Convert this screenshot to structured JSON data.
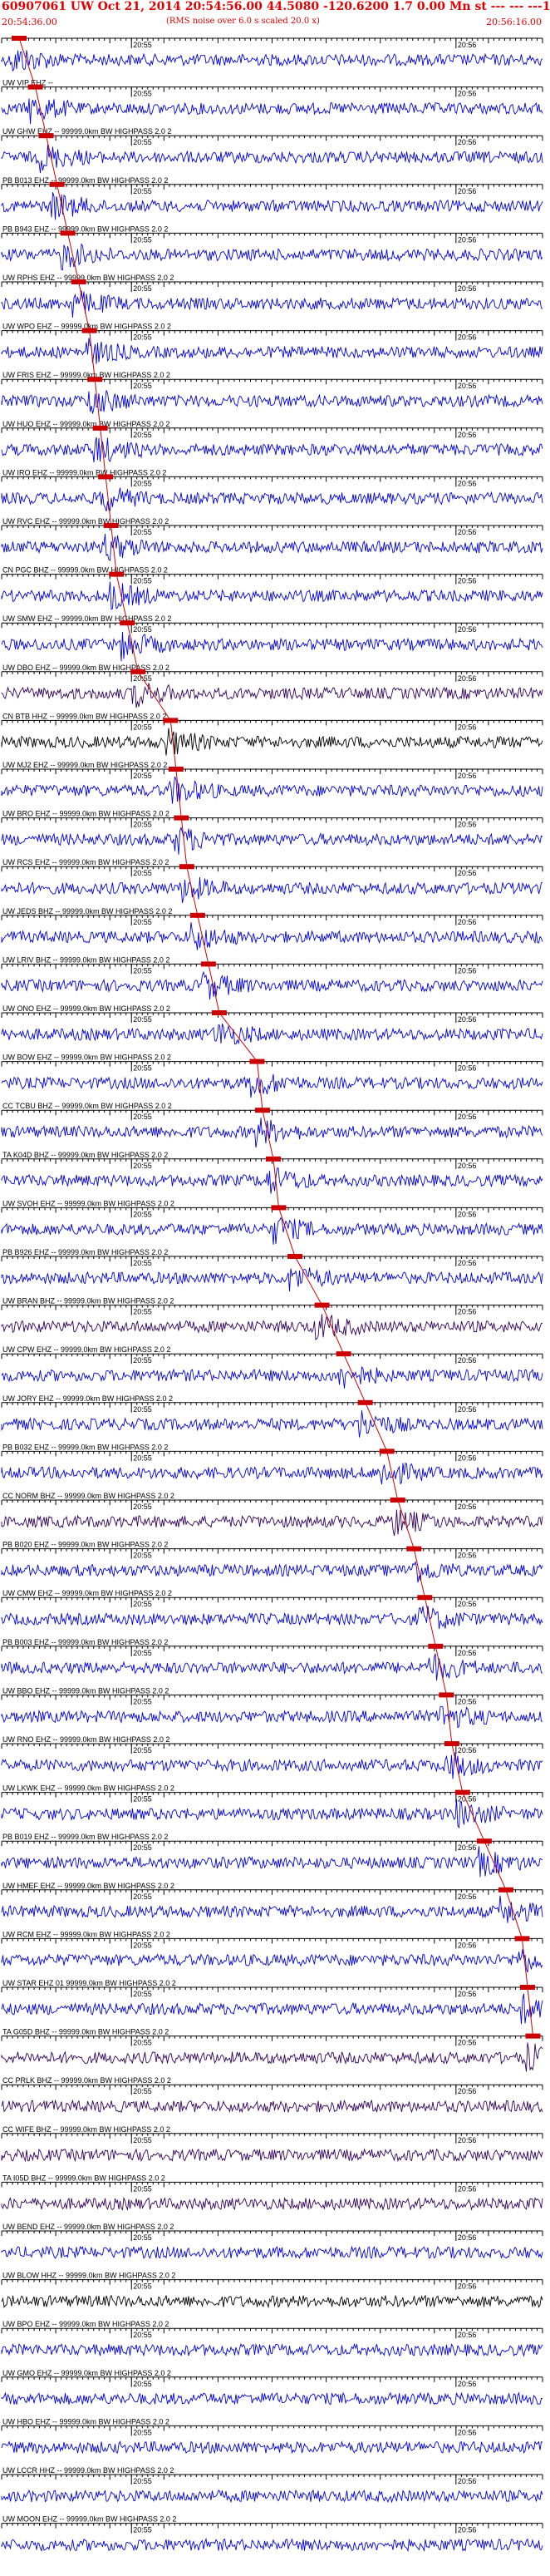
{
  "header": {
    "title": "60907061 UW Oct 21, 2014 20:54:56.00   44.5080 -120.6200  1.7 0.00 Mn st --- --- ---1",
    "start_time": "20:54:36.00",
    "noise_note": "(RMS noise over 6.0 s scaled 20.0 x)",
    "end_time": "20:56:16.00"
  },
  "colors": {
    "title": "#e00000",
    "pick": "#cc0000",
    "trace_blue": "#0000dd",
    "trace_purple": "#32005a",
    "trace_black": "#000000",
    "axis": "#000000"
  },
  "chart_data": {
    "type": "line",
    "x_unit": "seconds after 20:54:36.00",
    "xlim": [
      0,
      100
    ],
    "ticks_minor_every_s": 1,
    "ticks_major_every_s": 10,
    "inline_time_labels": [
      "20:55",
      "20:56"
    ],
    "inline_time_label_x": [
      24,
      84
    ],
    "series": [
      {
        "label": "",
        "color": "blue",
        "pick_s": 2
      },
      {
        "label": "UW VIP EHZ --",
        "color": "blue",
        "pick_s": 5
      },
      {
        "label": "UW GHW EHZ -- 99999.0km BW  HIGHPASS  2.0  2",
        "color": "blue",
        "pick_s": 7
      },
      {
        "label": "PB B013 EHZ -- 99999.0km BW  HIGHPASS  2.0  2",
        "color": "blue",
        "pick_s": 9
      },
      {
        "label": "PB B943 EHZ -- 99999.0km BW  HIGHPASS  2.0  2",
        "color": "blue",
        "pick_s": 11
      },
      {
        "label": "UW RPHS EHZ -- 99999.0km BW  HIGHPASS  2.0  2",
        "color": "blue",
        "pick_s": 13
      },
      {
        "label": "UW WPO EHZ -- 99999.0km BW  HIGHPASS  2.0  2",
        "color": "blue",
        "pick_s": 15
      },
      {
        "label": "UW FRIS EHZ -- 99999.0km BW  HIGHPASS  2.0  2",
        "color": "blue",
        "pick_s": 16
      },
      {
        "label": "UW HUO EHZ -- 99999.0km BW  HIGHPASS  2.0  2",
        "color": "blue",
        "pick_s": 17
      },
      {
        "label": "UW IRO EHZ -- 99999.0km BW  HIGHPASS  2.0  2",
        "color": "blue",
        "pick_s": 18
      },
      {
        "label": "UW RVC EHZ -- 99999.0km BW  HIGHPASS  2.0  2",
        "color": "blue",
        "pick_s": 19
      },
      {
        "label": "CN PGC BHZ -- 99999.0km BW  HIGHPASS  2.0  2",
        "color": "blue",
        "pick_s": 20
      },
      {
        "label": "UW SMW EHZ -- 99999.0km BW  HIGHPASS  2.0  2",
        "color": "blue",
        "pick_s": 22
      },
      {
        "label": "UW DBO EHZ -- 99999.0km BW  HIGHPASS  2.0  2",
        "color": "purple",
        "pick_s": 24
      },
      {
        "label": "CN BTB HHZ -- 99999.0km BW  HIGHPASS  2.0  2",
        "color": "black",
        "pick_s": 30
      },
      {
        "label": "UW MJ2 EHZ -- 99999.0km BW  HIGHPASS  2.0  2",
        "color": "blue",
        "pick_s": 31
      },
      {
        "label": "UW BRO EHZ -- 99999.0km BW  HIGHPASS  2.0  2",
        "color": "blue",
        "pick_s": 32
      },
      {
        "label": "UW RCS EHZ -- 99999.0km BW  HIGHPASS  2.0  2",
        "color": "blue",
        "pick_s": 33
      },
      {
        "label": "UW JEDS BHZ -- 99999.0km BW  HIGHPASS  2.0  2",
        "color": "blue",
        "pick_s": 35
      },
      {
        "label": "UW LRIV BHZ -- 99999.0km BW  HIGHPASS  2.0  2",
        "color": "blue",
        "pick_s": 37
      },
      {
        "label": "UW ONO EHZ -- 99999.0km BW  HIGHPASS  2.0  2",
        "color": "blue",
        "pick_s": 39
      },
      {
        "label": "UW BOW EHZ -- 99999.0km BW  HIGHPASS  2.0  2",
        "color": "blue",
        "pick_s": 46
      },
      {
        "label": "CC TCBU BHZ -- 99999.0km BW  HIGHPASS  2.0  2",
        "color": "blue",
        "pick_s": 47
      },
      {
        "label": "TA K04D BHZ -- 99999.0km BW  HIGHPASS  2.0  2",
        "color": "blue",
        "pick_s": 49
      },
      {
        "label": "UW SVOH EHZ -- 99999.0km BW  HIGHPASS  2.0  2",
        "color": "blue",
        "pick_s": 50
      },
      {
        "label": "PB B926 EHZ -- 99999.0km BW  HIGHPASS  2.0  2",
        "color": "blue",
        "pick_s": 53
      },
      {
        "label": "UW BRAN BHZ -- 99999.0km BW  HIGHPASS  2.0  2",
        "color": "purple",
        "pick_s": 58
      },
      {
        "label": "UW CPW EHZ -- 99999.0km BW  HIGHPASS  2.0  2",
        "color": "blue",
        "pick_s": 62
      },
      {
        "label": "UW JORY EHZ -- 99999.0km BW  HIGHPASS  2.0  2",
        "color": "blue",
        "pick_s": 66
      },
      {
        "label": "PB B032 EHZ -- 99999.0km BW  HIGHPASS  2.0  2",
        "color": "blue",
        "pick_s": 70
      },
      {
        "label": "CC NORM BHZ -- 99999.0km BW  HIGHPASS  2.0  2",
        "color": "purple",
        "pick_s": 72
      },
      {
        "label": "PB B020 EHZ -- 99999.0km BW  HIGHPASS  2.0  2",
        "color": "blue",
        "pick_s": 75
      },
      {
        "label": "UW CMW EHZ -- 99999.0km BW  HIGHPASS  2.0  2",
        "color": "blue",
        "pick_s": 77
      },
      {
        "label": "PB B003 EHZ -- 99999.0km BW  HIGHPASS  2.0  2",
        "color": "blue",
        "pick_s": 79
      },
      {
        "label": "UW BBO EHZ -- 99999.0km BW  HIGHPASS  2.0  2",
        "color": "blue",
        "pick_s": 81
      },
      {
        "label": "UW RNO EHZ -- 99999.0km BW  HIGHPASS  2.0  2",
        "color": "blue",
        "pick_s": 82
      },
      {
        "label": "UW LKWK EHZ -- 99999.0km BW  HIGHPASS  2.0  2",
        "color": "blue",
        "pick_s": 84
      },
      {
        "label": "PB B019 EHZ -- 99999.0km BW  HIGHPASS  2.0  2",
        "color": "blue",
        "pick_s": 88
      },
      {
        "label": "UW HMEF EHZ -- 99999.0km BW  HIGHPASS  2.0  2",
        "color": "blue",
        "pick_s": 92
      },
      {
        "label": "UW RCM EHZ -- 99999.0km BW  HIGHPASS  2.0  2",
        "color": "blue",
        "pick_s": 95
      },
      {
        "label": "UW STAR EHZ 01 99999.0km BW  HIGHPASS  2.0  2",
        "color": "blue",
        "pick_s": 96
      },
      {
        "label": "TA G05D BHZ -- 99999.0km BW  HIGHPASS  2.0  2",
        "color": "purple",
        "pick_s": 97
      },
      {
        "label": "CC PRLK BHZ -- 99999.0km BW  HIGHPASS  2.0  2",
        "color": "purple",
        "pick_s": null
      },
      {
        "label": "CC WIFE BHZ -- 99999.0km BW  HIGHPASS  2.0  2",
        "color": "purple",
        "pick_s": null
      },
      {
        "label": "TA I05D BHZ -- 99999.0km BW  HIGHPASS  2.0  2",
        "color": "purple",
        "pick_s": null
      },
      {
        "label": "UW BEND EHZ -- 99999.0km BW  HIGHPASS  2.0  2",
        "color": "blue",
        "pick_s": null
      },
      {
        "label": "UW BLOW HHZ -- 99999.0km BW  HIGHPASS  2.0  2",
        "color": "black",
        "pick_s": null
      },
      {
        "label": "UW BPO EHZ -- 99999.0km BW  HIGHPASS  2.0  2",
        "color": "blue",
        "pick_s": null
      },
      {
        "label": "UW GMO EHZ -- 99999.0km BW  HIGHPASS  2.0  2",
        "color": "blue",
        "pick_s": null
      },
      {
        "label": "UW HBO EHZ -- 99999.0km BW  HIGHPASS  2.0  2",
        "color": "blue",
        "pick_s": null
      },
      {
        "label": "UW LCCR HHZ -- 99999.0km BW  HIGHPASS  2.0  2",
        "color": "blue",
        "pick_s": null
      },
      {
        "label": "UW MOON EHZ -- 99999.0km BW  HIGHPASS  2.0  2",
        "color": "blue",
        "pick_s": null
      }
    ]
  }
}
